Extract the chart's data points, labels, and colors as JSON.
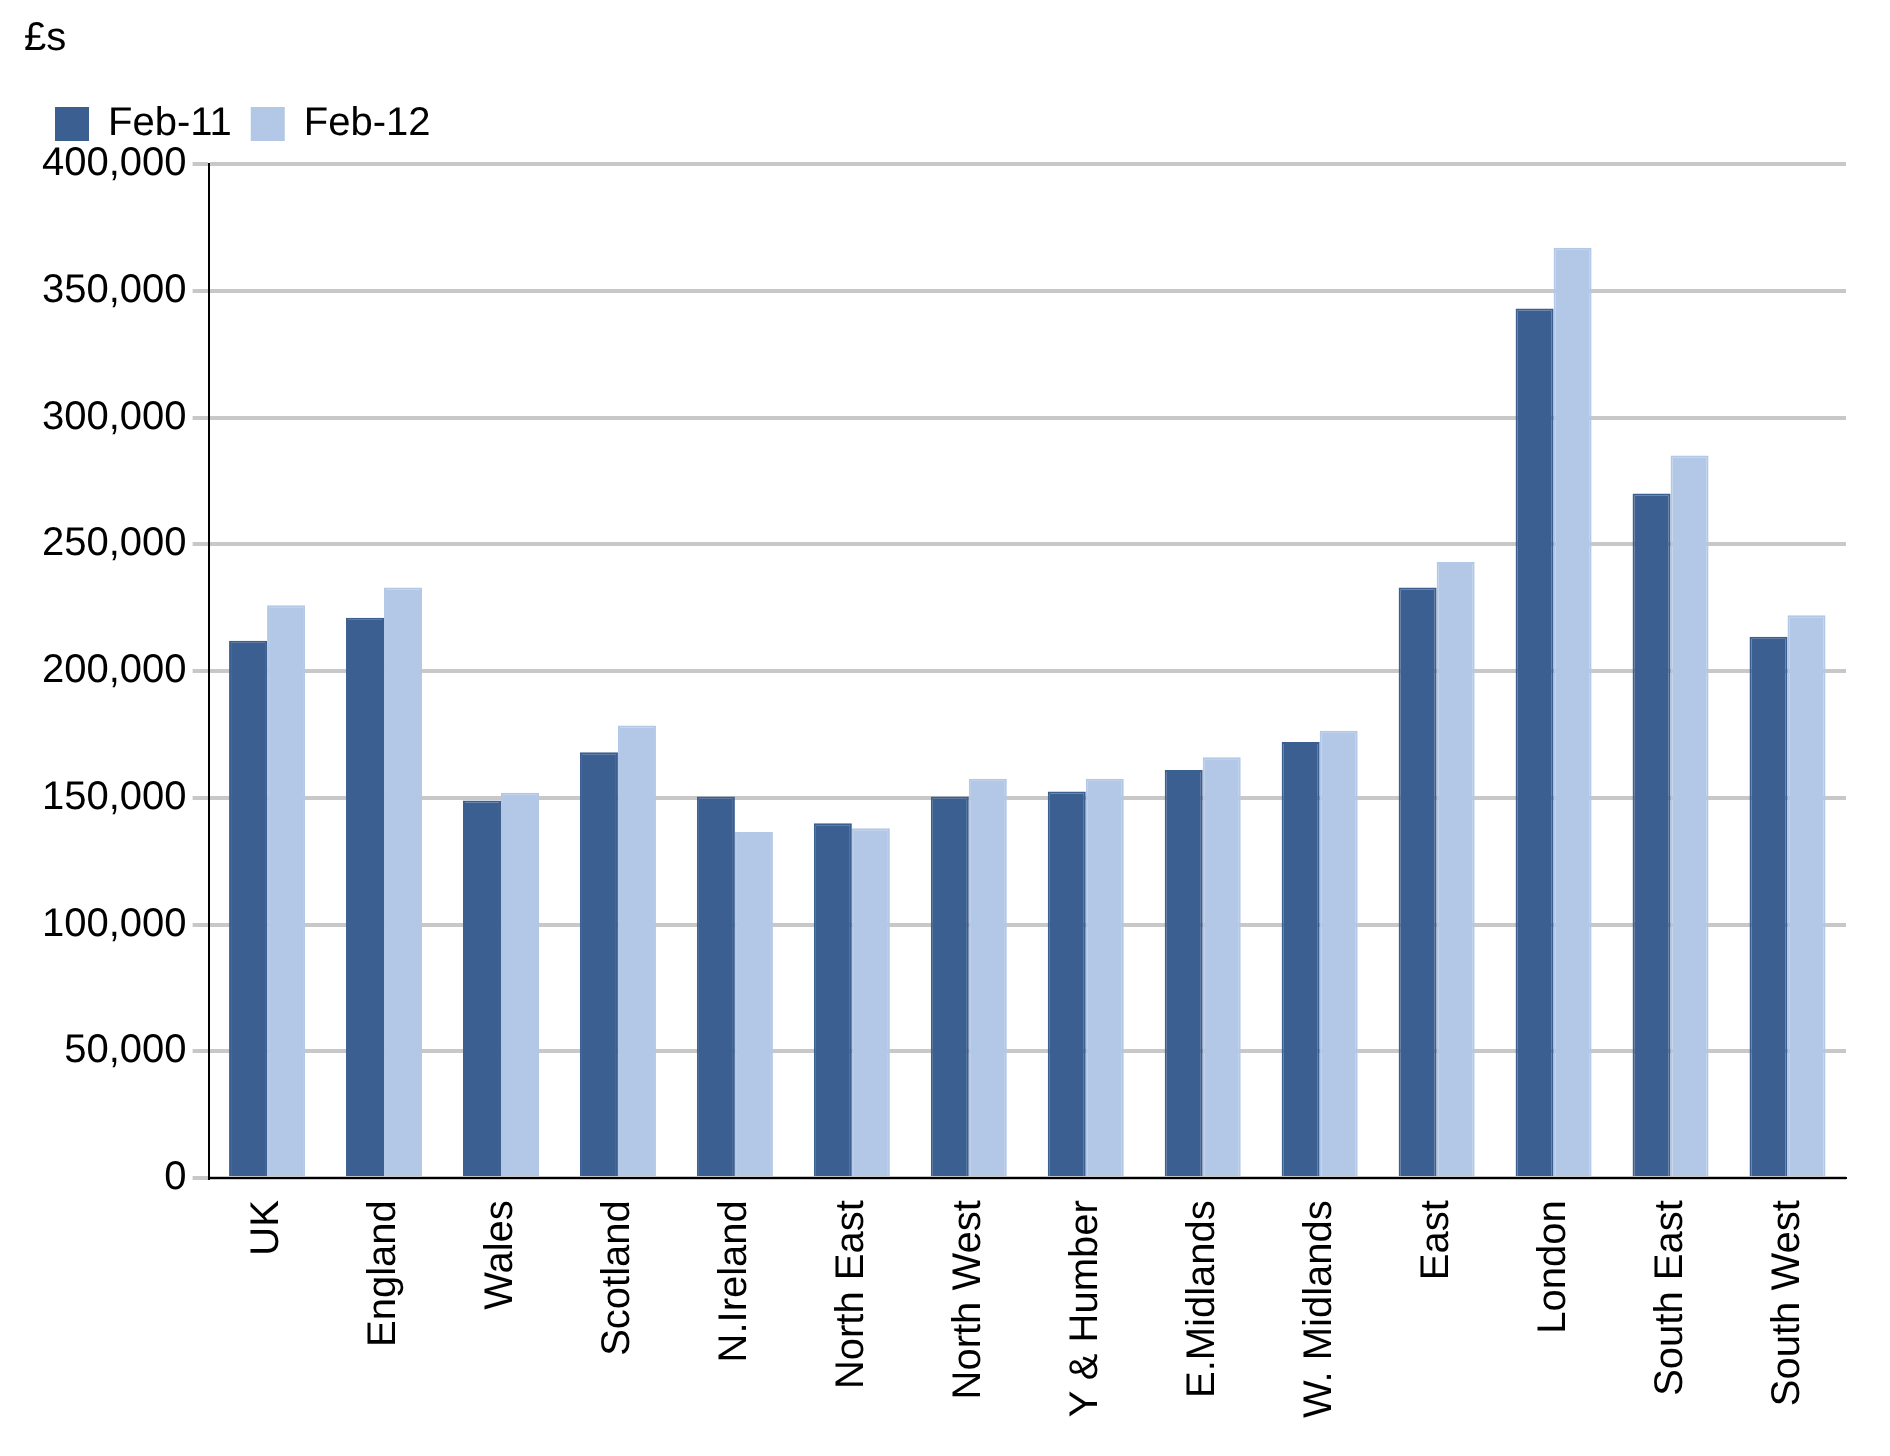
{
  "chart_data": {
    "type": "bar",
    "ylabel": "£s",
    "categories": [
      "UK",
      "England",
      "Wales",
      "Scotland",
      "N.Ireland",
      "North East",
      "North West",
      "Y & Humber",
      "E.Midlands",
      "W. Midlands",
      "East",
      "London",
      "South East",
      "South West"
    ],
    "series": [
      {
        "name": "Feb-11",
        "color": "#3c5f91",
        "values": [
          212000,
          221000,
          149000,
          168000,
          150500,
          140000,
          150500,
          152500,
          161000,
          172000,
          233000,
          343000,
          270000,
          213500
        ]
      },
      {
        "name": "Feb-12",
        "color": "#b3c8e6",
        "values": [
          226000,
          233000,
          152000,
          178500,
          136500,
          138000,
          157500,
          157500,
          166000,
          176500,
          243000,
          367000,
          285000,
          222000
        ]
      }
    ],
    "ylim": [
      0,
      400000
    ],
    "yticks": [
      0,
      {
        "value": 50000,
        "label": "50,000"
      },
      {
        "value": 100000,
        "label": "100,000"
      },
      {
        "value": 150000,
        "label": "150,000"
      },
      {
        "value": 200000,
        "label": "200,000"
      },
      {
        "value": 250000,
        "label": "250,000"
      },
      {
        "value": 300000,
        "label": "300,000"
      },
      {
        "value": 350000,
        "label": "350,000"
      },
      {
        "value": 400000,
        "label": "400,000"
      }
    ],
    "grid": "y",
    "legend": "top left"
  }
}
